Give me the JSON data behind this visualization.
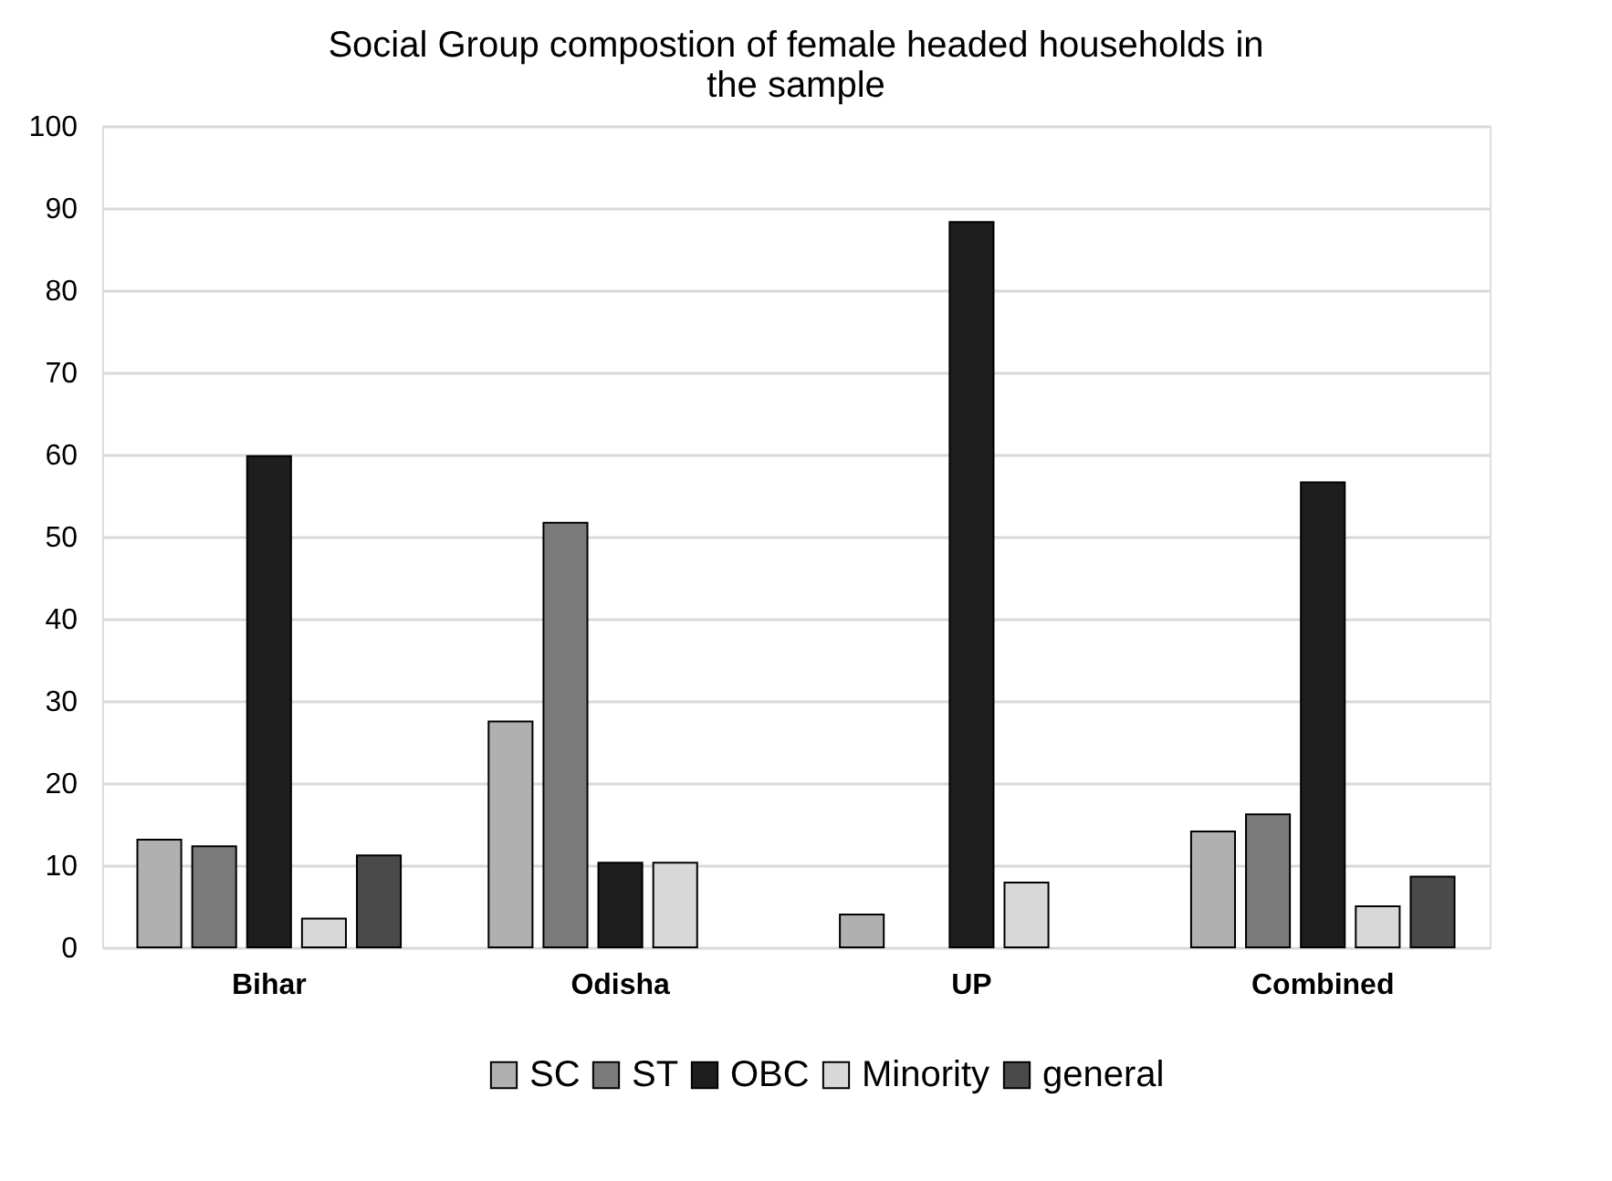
{
  "chart_data": {
    "type": "bar",
    "title": [
      "Social Group compostion of female headed households in",
      "the sample"
    ],
    "categories": [
      "Bihar",
      "Odisha",
      "UP",
      "Combined"
    ],
    "series": [
      {
        "name": "SC",
        "color": "#b0b0b0",
        "values": [
          13.1,
          27.5,
          4.0,
          14.1
        ]
      },
      {
        "name": "ST",
        "color": "#7a7a7a",
        "values": [
          12.3,
          51.7,
          null,
          16.2
        ]
      },
      {
        "name": "OBC",
        "color": "#1e1e1e",
        "values": [
          59.8,
          10.3,
          88.3,
          56.6
        ]
      },
      {
        "name": "Minority",
        "color": "#d8d8d8",
        "values": [
          3.5,
          10.3,
          7.9,
          5.0
        ]
      },
      {
        "name": "general",
        "color": "#4a4a4a",
        "values": [
          11.2,
          null,
          null,
          8.6
        ]
      }
    ],
    "ylim": [
      0,
      100
    ],
    "yticks": [
      0,
      10,
      20,
      30,
      40,
      50,
      60,
      70,
      80,
      90,
      100
    ],
    "grid": "y",
    "legend": "bottom"
  }
}
